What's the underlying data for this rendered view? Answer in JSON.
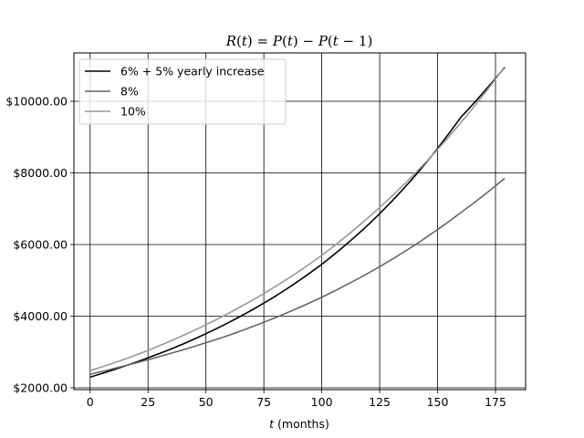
{
  "chart_data": {
    "type": "line",
    "title": "R(t) = P(t) − P(t − 1)",
    "title_parts": [
      "R",
      "(",
      "t",
      ") = ",
      "P",
      "(",
      "t",
      ") − ",
      "P",
      "(",
      "t",
      " − 1)"
    ],
    "xlabel_var": "t",
    "xlabel_unit": " (months)",
    "xlim": [
      -7,
      188
    ],
    "ylim": [
      1950,
      11350
    ],
    "xticks": [
      0,
      25,
      50,
      75,
      100,
      125,
      150,
      175
    ],
    "yticks": [
      2000,
      4000,
      6000,
      8000,
      10000
    ],
    "ytick_labels": [
      "$2000.00",
      "$4000.00",
      "$6000.00",
      "$8000.00",
      "$10000.00"
    ],
    "grid": true,
    "legend_position": "top-left",
    "series": [
      {
        "name": "6% + 5% yearly increase",
        "color": "#000000",
        "x": [
          0,
          20,
          40,
          60,
          80,
          100,
          120,
          140,
          160,
          179
        ],
        "y": [
          2300,
          2720,
          3220,
          3830,
          4560,
          5450,
          6550,
          7900,
          9550,
          10950
        ]
      },
      {
        "name": "8%",
        "color": "#666666",
        "x": [
          0,
          20,
          40,
          60,
          80,
          100,
          120,
          140,
          160,
          179
        ],
        "y": [
          2380,
          2700,
          3060,
          3470,
          3960,
          4530,
          5200,
          5980,
          6890,
          7850
        ]
      },
      {
        "name": "10%",
        "color": "#999999",
        "x": [
          0,
          20,
          40,
          60,
          80,
          100,
          120,
          140,
          160,
          179
        ],
        "y": [
          2480,
          2920,
          3460,
          4090,
          4830,
          5700,
          6750,
          7970,
          9400,
          10970
        ]
      }
    ]
  }
}
